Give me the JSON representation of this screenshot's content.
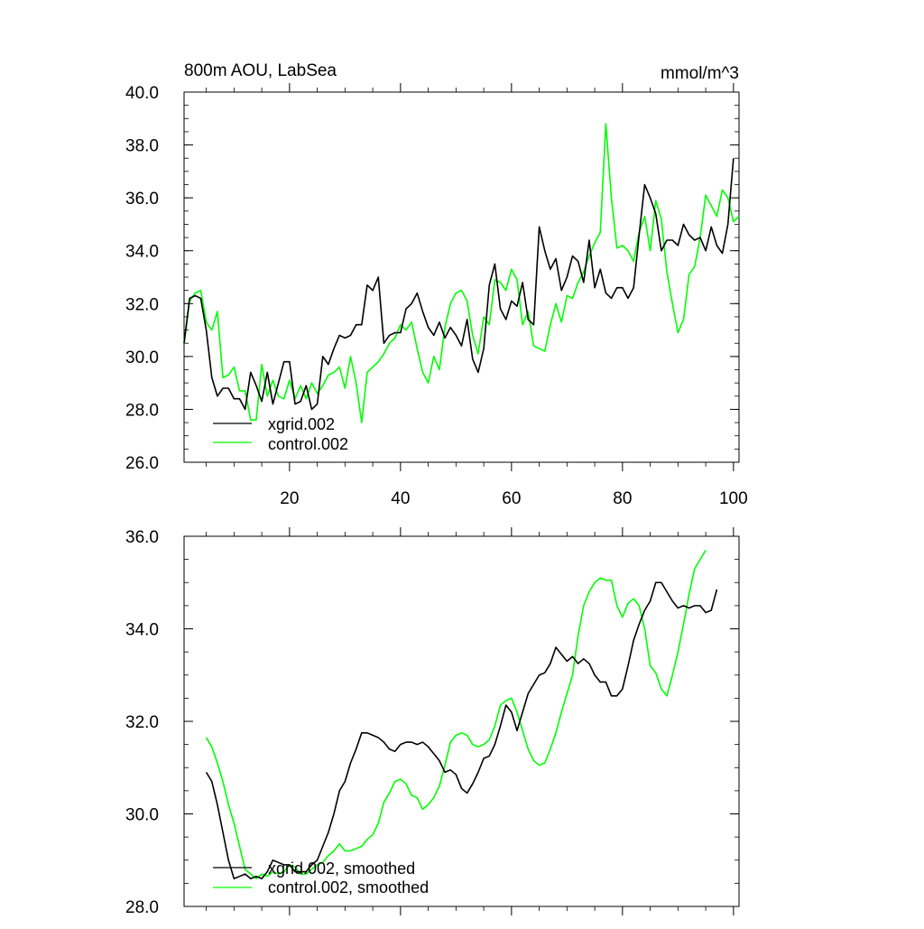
{
  "chart_data": [
    {
      "type": "line",
      "title": "800m AOU, LabSea",
      "units": "mmol/m^3",
      "xlim": [
        1,
        101
      ],
      "ylim": [
        26.0,
        40.0
      ],
      "xticks": [
        20,
        40,
        60,
        80,
        100
      ],
      "yticks": [
        26.0,
        28.0,
        30.0,
        32.0,
        34.0,
        36.0,
        38.0,
        40.0
      ],
      "ytick_labels": [
        "26.0",
        "28.0",
        "30.0",
        "32.0",
        "34.0",
        "36.0",
        "38.0",
        "40.0"
      ],
      "legend_position": "bottom-left",
      "x": [
        1,
        2,
        3,
        4,
        5,
        6,
        7,
        8,
        9,
        10,
        11,
        12,
        13,
        14,
        15,
        16,
        17,
        18,
        19,
        20,
        21,
        22,
        23,
        24,
        25,
        26,
        27,
        28,
        29,
        30,
        31,
        32,
        33,
        34,
        35,
        36,
        37,
        38,
        39,
        40,
        41,
        42,
        43,
        44,
        45,
        46,
        47,
        48,
        49,
        50,
        51,
        52,
        53,
        54,
        55,
        56,
        57,
        58,
        59,
        60,
        61,
        62,
        63,
        64,
        65,
        66,
        67,
        68,
        69,
        70,
        71,
        72,
        73,
        74,
        75,
        76,
        77,
        78,
        79,
        80,
        81,
        82,
        83,
        84,
        85,
        86,
        87,
        88,
        89,
        90,
        91,
        92,
        93,
        94,
        95,
        96,
        97,
        98,
        99,
        100,
        101
      ],
      "series": [
        {
          "name": "xgrid.002",
          "color": "#000000",
          "values": [
            30.5,
            32.2,
            32.3,
            32.2,
            31.0,
            29.2,
            28.5,
            28.8,
            28.8,
            28.4,
            28.4,
            28.0,
            29.4,
            28.9,
            28.3,
            29.4,
            28.2,
            29.0,
            29.8,
            29.8,
            28.2,
            28.3,
            28.9,
            28.0,
            28.2,
            30.0,
            29.7,
            30.3,
            30.8,
            30.7,
            30.8,
            31.2,
            31.2,
            32.7,
            32.5,
            33.0,
            30.5,
            30.8,
            30.9,
            30.9,
            31.8,
            32.0,
            32.4,
            31.7,
            31.1,
            30.8,
            31.3,
            30.7,
            31.1,
            30.8,
            30.4,
            31.4,
            29.9,
            29.4,
            30.3,
            32.7,
            33.5,
            31.8,
            31.4,
            32.1,
            31.9,
            32.8,
            31.4,
            31.2,
            34.9,
            34.0,
            33.3,
            33.7,
            32.5,
            33.0,
            33.8,
            33.6,
            32.8,
            34.4,
            32.6,
            33.3,
            32.4,
            32.2,
            32.6,
            32.6,
            32.2,
            32.6,
            34.6,
            36.5,
            36.0,
            35.4,
            34.0,
            34.4,
            34.4,
            34.2,
            35.0,
            34.6,
            34.4,
            34.5,
            34.0,
            34.9,
            34.2,
            33.9,
            35.0,
            37.5,
            null
          ]
        },
        {
          "name": "control.002",
          "color": "#00ff00",
          "values": [
            30.5,
            32.1,
            32.4,
            32.5,
            31.3,
            31.0,
            31.7,
            29.2,
            29.3,
            29.6,
            28.7,
            28.7,
            27.6,
            27.6,
            29.7,
            28.5,
            29.1,
            28.5,
            28.4,
            29.1,
            28.4,
            28.9,
            28.4,
            29.0,
            28.6,
            28.9,
            29.3,
            29.4,
            29.6,
            28.8,
            30.0,
            29.0,
            27.5,
            29.4,
            29.6,
            29.8,
            30.1,
            30.5,
            30.7,
            31.2,
            31.0,
            31.3,
            30.3,
            29.4,
            29.0,
            30.0,
            29.5,
            31.1,
            32.0,
            32.4,
            32.5,
            32.1,
            30.8,
            30.1,
            31.5,
            31.2,
            32.9,
            32.8,
            32.5,
            33.3,
            32.9,
            31.2,
            31.7,
            30.4,
            30.3,
            30.2,
            31.2,
            32.0,
            31.3,
            32.3,
            32.2,
            32.8,
            33.2,
            33.8,
            34.3,
            34.7,
            38.8,
            36.0,
            34.1,
            34.2,
            34.0,
            33.6,
            34.7,
            35.3,
            34.0,
            35.9,
            35.2,
            33.2,
            32.0,
            30.9,
            31.4,
            33.1,
            33.4,
            34.5,
            36.1,
            35.7,
            35.3,
            36.3,
            36.0,
            35.1,
            35.3
          ]
        }
      ]
    },
    {
      "type": "line",
      "title": "",
      "units": "",
      "xlim": [
        1,
        101
      ],
      "ylim": [
        28.0,
        36.0
      ],
      "xticks": [
        20,
        40,
        60,
        80,
        100
      ],
      "yticks": [
        28.0,
        30.0,
        32.0,
        34.0,
        36.0
      ],
      "ytick_labels": [
        "28.0",
        "30.0",
        "32.0",
        "34.0",
        "36.0"
      ],
      "legend_position": "bottom-left",
      "x": [
        1,
        2,
        3,
        4,
        5,
        6,
        7,
        8,
        9,
        10,
        11,
        12,
        13,
        14,
        15,
        16,
        17,
        18,
        19,
        20,
        21,
        22,
        23,
        24,
        25,
        26,
        27,
        28,
        29,
        30,
        31,
        32,
        33,
        34,
        35,
        36,
        37,
        38,
        39,
        40,
        41,
        42,
        43,
        44,
        45,
        46,
        47,
        48,
        49,
        50,
        51,
        52,
        53,
        54,
        55,
        56,
        57,
        58,
        59,
        60,
        61,
        62,
        63,
        64,
        65,
        66,
        67,
        68,
        69,
        70,
        71,
        72,
        73,
        74,
        75,
        76,
        77,
        78,
        79,
        80,
        81,
        82,
        83,
        84,
        85,
        86,
        87,
        88,
        89,
        90,
        91,
        92,
        93,
        94,
        95,
        96,
        97,
        98,
        99,
        100,
        101
      ],
      "series": [
        {
          "name": "xgrid.002, smoothed",
          "color": "#000000",
          "values": [
            null,
            null,
            null,
            null,
            30.9,
            30.7,
            30.2,
            29.6,
            29.0,
            28.6,
            28.65,
            28.7,
            28.6,
            28.65,
            28.6,
            28.75,
            29.0,
            28.95,
            28.9,
            28.9,
            28.75,
            28.75,
            28.75,
            28.9,
            29.0,
            29.3,
            29.6,
            30.0,
            30.5,
            30.7,
            31.1,
            31.4,
            31.75,
            31.75,
            31.7,
            31.65,
            31.55,
            31.4,
            31.35,
            31.5,
            31.55,
            31.55,
            31.5,
            31.55,
            31.45,
            31.3,
            31.15,
            30.9,
            30.95,
            30.85,
            30.55,
            30.45,
            30.65,
            30.9,
            31.2,
            31.25,
            31.5,
            31.9,
            32.35,
            32.2,
            31.8,
            32.2,
            32.6,
            32.8,
            33.0,
            33.05,
            33.25,
            33.6,
            33.45,
            33.3,
            33.4,
            33.25,
            33.35,
            33.25,
            33.0,
            32.85,
            32.85,
            32.55,
            32.55,
            32.7,
            33.2,
            33.75,
            34.1,
            34.4,
            34.6,
            35.0,
            35.0,
            34.8,
            34.6,
            34.45,
            34.5,
            34.45,
            34.5,
            34.5,
            34.35,
            34.4,
            34.85,
            null,
            null,
            null,
            null
          ]
        },
        {
          "name": "control.002, smoothed",
          "color": "#00ff00",
          "values": [
            null,
            null,
            null,
            null,
            31.65,
            31.45,
            31.1,
            30.7,
            30.2,
            29.8,
            29.3,
            28.8,
            28.7,
            28.6,
            28.7,
            28.65,
            28.75,
            28.7,
            28.75,
            28.9,
            28.85,
            28.7,
            28.7,
            28.8,
            28.9,
            28.95,
            29.1,
            29.2,
            29.35,
            29.2,
            29.2,
            29.25,
            29.3,
            29.45,
            29.55,
            29.8,
            30.25,
            30.45,
            30.7,
            30.75,
            30.65,
            30.4,
            30.35,
            30.1,
            30.2,
            30.35,
            30.6,
            31.05,
            31.55,
            31.7,
            31.75,
            31.7,
            31.5,
            31.45,
            31.5,
            31.6,
            31.9,
            32.35,
            32.45,
            32.5,
            32.2,
            31.8,
            31.4,
            31.15,
            31.05,
            31.1,
            31.4,
            31.75,
            32.2,
            32.6,
            33.0,
            33.85,
            34.5,
            34.8,
            35.0,
            35.1,
            35.05,
            35.05,
            34.5,
            34.25,
            34.55,
            34.65,
            34.5,
            34.0,
            33.2,
            33.05,
            32.7,
            32.55,
            33.0,
            33.5,
            34.1,
            34.75,
            35.3,
            35.5,
            35.7,
            null,
            null,
            null,
            null,
            null,
            null
          ]
        }
      ]
    }
  ]
}
